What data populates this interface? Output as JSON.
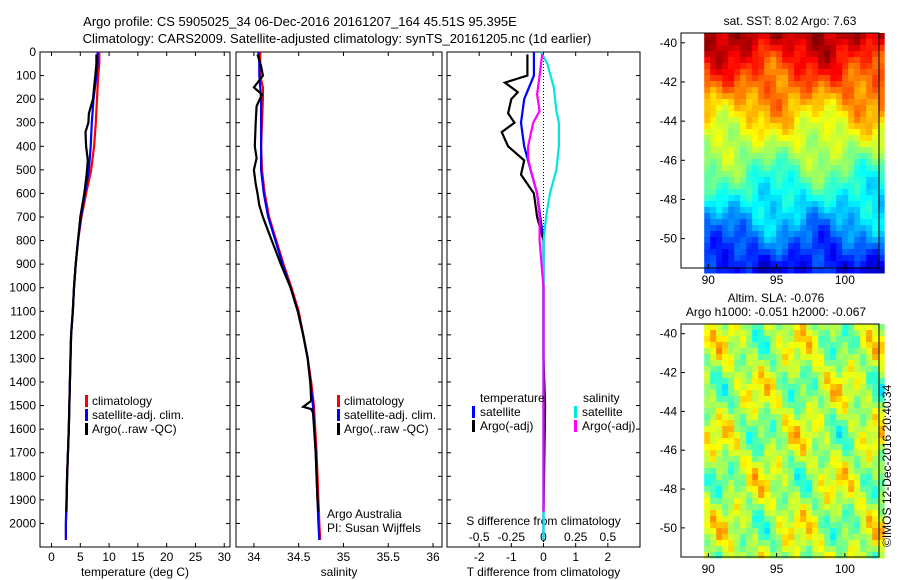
{
  "title_line1": "Argo profile: CS 5905025_34 06-Dec-2016 20161207_164 45.51S 95.395E",
  "title_line2": "Climatology: CARS2009. Satellite-adjusted climatology: synTS_20161205.nc (1d earlier)",
  "colors": {
    "climatology": "#ff0000",
    "satellite": "#0000ff",
    "argo": "#000000",
    "sat_diff_s": "#00e5e5",
    "argo_diff_s": "#ff00ff"
  },
  "chart_data": [
    {
      "type": "line",
      "id": "temperature",
      "xlabel": "temperature (deg C)",
      "ylabel": "",
      "xlim": [
        -2,
        31
      ],
      "ylim": [
        2100,
        0
      ],
      "xticks": [
        0,
        5,
        10,
        15,
        20,
        25,
        30
      ],
      "yticks": [
        0,
        100,
        200,
        300,
        400,
        500,
        600,
        700,
        800,
        900,
        1000,
        1100,
        1200,
        1300,
        1400,
        1500,
        1600,
        1700,
        1800,
        1900,
        2000
      ],
      "legend": [
        "climatology",
        "satellite-adj. clim.",
        "Argo(..raw -QC)"
      ],
      "series": [
        {
          "name": "climatology",
          "color": "#ff0000",
          "points": [
            [
              8.3,
              0
            ],
            [
              8.3,
              50
            ],
            [
              8.1,
              100
            ],
            [
              7.9,
              200
            ],
            [
              7.7,
              300
            ],
            [
              7.4,
              400
            ],
            [
              6.9,
              500
            ],
            [
              6.0,
              600
            ],
            [
              5.2,
              700
            ],
            [
              4.6,
              800
            ],
            [
              4.2,
              900
            ],
            [
              3.9,
              1000
            ],
            [
              3.7,
              1100
            ],
            [
              3.4,
              1200
            ],
            [
              3.2,
              1400
            ],
            [
              3.0,
              1600
            ],
            [
              2.7,
              1800
            ],
            [
              2.5,
              2000
            ],
            [
              2.5,
              2070
            ]
          ]
        },
        {
          "name": "satellite-adj. clim.",
          "color": "#0000ff",
          "points": [
            [
              8.0,
              0
            ],
            [
              8.0,
              50
            ],
            [
              7.8,
              100
            ],
            [
              7.3,
              200
            ],
            [
              7.0,
              300
            ],
            [
              6.8,
              400
            ],
            [
              6.5,
              500
            ],
            [
              5.8,
              600
            ],
            [
              5.1,
              700
            ],
            [
              4.6,
              800
            ],
            [
              4.2,
              900
            ],
            [
              3.9,
              1000
            ],
            [
              3.7,
              1100
            ],
            [
              3.4,
              1200
            ],
            [
              3.2,
              1400
            ],
            [
              3.0,
              1600
            ],
            [
              2.7,
              1800
            ],
            [
              2.5,
              2000
            ],
            [
              2.5,
              2070
            ]
          ]
        },
        {
          "name": "Argo(..raw -QC)",
          "color": "#000000",
          "points": [
            [
              7.8,
              10
            ],
            [
              7.8,
              50
            ],
            [
              7.6,
              100
            ],
            [
              7.4,
              150
            ],
            [
              7.2,
              200
            ],
            [
              6.5,
              260
            ],
            [
              6.4,
              300
            ],
            [
              5.9,
              340
            ],
            [
              6.0,
              400
            ],
            [
              6.3,
              460
            ],
            [
              6.1,
              520
            ],
            [
              5.7,
              600
            ],
            [
              5.0,
              700
            ],
            [
              4.6,
              800
            ],
            [
              4.2,
              900
            ],
            [
              3.9,
              1000
            ],
            [
              3.7,
              1100
            ],
            [
              3.4,
              1200
            ],
            [
              3.2,
              1400
            ],
            [
              3.0,
              1600
            ],
            [
              2.7,
              1800
            ],
            [
              2.6,
              1950
            ]
          ]
        }
      ]
    },
    {
      "type": "line",
      "id": "salinity",
      "xlabel": "salinity",
      "ylabel": "",
      "xlim": [
        33.8,
        36.1
      ],
      "ylim": [
        2100,
        0
      ],
      "xticks": [
        34,
        34.5,
        35,
        35.5,
        36
      ],
      "legend": [
        "climatology",
        "satellite-adj. clim.",
        "Argo(..raw -QC)"
      ],
      "annotation": [
        "Argo Australia",
        "PI: Susan Wijffels"
      ],
      "series": [
        {
          "name": "climatology",
          "color": "#ff0000",
          "points": [
            [
              34.07,
              0
            ],
            [
              34.07,
              100
            ],
            [
              34.1,
              150
            ],
            [
              34.1,
              200
            ],
            [
              34.09,
              300
            ],
            [
              34.08,
              400
            ],
            [
              34.09,
              500
            ],
            [
              34.12,
              600
            ],
            [
              34.17,
              700
            ],
            [
              34.25,
              800
            ],
            [
              34.33,
              900
            ],
            [
              34.42,
              1000
            ],
            [
              34.5,
              1100
            ],
            [
              34.55,
              1200
            ],
            [
              34.6,
              1300
            ],
            [
              34.64,
              1400
            ],
            [
              34.67,
              1500
            ],
            [
              34.7,
              1700
            ],
            [
              34.72,
              1900
            ],
            [
              34.73,
              2000
            ],
            [
              34.74,
              2070
            ]
          ]
        },
        {
          "name": "satellite-adj. clim.",
          "color": "#0000ff",
          "points": [
            [
              34.05,
              0
            ],
            [
              34.06,
              50
            ],
            [
              34.06,
              100
            ],
            [
              34.08,
              200
            ],
            [
              34.08,
              300
            ],
            [
              34.08,
              400
            ],
            [
              34.08,
              500
            ],
            [
              34.11,
              600
            ],
            [
              34.16,
              700
            ],
            [
              34.24,
              800
            ],
            [
              34.32,
              900
            ],
            [
              34.41,
              1000
            ],
            [
              34.49,
              1100
            ],
            [
              34.55,
              1200
            ],
            [
              34.6,
              1300
            ],
            [
              34.63,
              1400
            ],
            [
              34.66,
              1500
            ],
            [
              34.69,
              1700
            ],
            [
              34.71,
              1900
            ],
            [
              34.72,
              2000
            ],
            [
              34.73,
              2070
            ]
          ]
        },
        {
          "name": "Argo(..raw -QC)",
          "color": "#000000",
          "points": [
            [
              34.04,
              10
            ],
            [
              34.08,
              60
            ],
            [
              34.1,
              100
            ],
            [
              34.0,
              150
            ],
            [
              34.09,
              180
            ],
            [
              34.03,
              230
            ],
            [
              34.02,
              300
            ],
            [
              34.01,
              400
            ],
            [
              34.03,
              450
            ],
            [
              34.0,
              500
            ],
            [
              34.02,
              560
            ],
            [
              34.04,
              600
            ],
            [
              34.06,
              650
            ],
            [
              34.1,
              700
            ],
            [
              34.2,
              800
            ],
            [
              34.3,
              900
            ],
            [
              34.41,
              1000
            ],
            [
              34.49,
              1100
            ],
            [
              34.55,
              1200
            ],
            [
              34.6,
              1300
            ],
            [
              34.63,
              1400
            ],
            [
              34.64,
              1480
            ],
            [
              34.55,
              1505
            ],
            [
              34.64,
              1515
            ],
            [
              34.66,
              1530
            ],
            [
              34.69,
              1700
            ],
            [
              34.71,
              1900
            ],
            [
              34.72,
              1950
            ]
          ]
        }
      ]
    },
    {
      "type": "line",
      "id": "difference",
      "xlabel": "T difference from climatology",
      "xlabel_top": "S difference from climatology",
      "ylabel": "",
      "xlim": [
        -3,
        3
      ],
      "ylim": [
        2100,
        0
      ],
      "xticks": [
        -2,
        -1,
        0,
        1,
        2
      ],
      "xticks_top": [
        -0.5,
        -0.25,
        0,
        0.25,
        0.5
      ],
      "legend_temperature_title": "temperature",
      "legend_salinity_title": "salinity",
      "legend_temperature": [
        "satellite",
        "Argo(-adj)"
      ],
      "legend_salinity": [
        "satellite",
        "Argo(-adj)"
      ],
      "series": [
        {
          "name": "T satellite",
          "color": "#0000ff",
          "points": [
            [
              -0.3,
              0
            ],
            [
              -0.3,
              50
            ],
            [
              -0.3,
              100
            ],
            [
              -0.6,
              200
            ],
            [
              -0.7,
              300
            ],
            [
              -0.6,
              400
            ],
            [
              -0.4,
              500
            ],
            [
              -0.2,
              600
            ],
            [
              -0.1,
              700
            ],
            [
              0,
              800
            ],
            [
              0,
              1000
            ],
            [
              0,
              1500
            ],
            [
              0,
              2070
            ]
          ]
        },
        {
          "name": "T Argo(-adj)",
          "color": "#000000",
          "points": [
            [
              -0.5,
              10
            ],
            [
              -0.5,
              50
            ],
            [
              -0.5,
              100
            ],
            [
              -1.2,
              130
            ],
            [
              -0.8,
              170
            ],
            [
              -1.0,
              200
            ],
            [
              -1.1,
              260
            ],
            [
              -0.9,
              300
            ],
            [
              -1.3,
              340
            ],
            [
              -1.1,
              400
            ],
            [
              -0.6,
              460
            ],
            [
              -0.7,
              520
            ],
            [
              -0.3,
              600
            ],
            [
              -0.2,
              700
            ],
            [
              0,
              800
            ],
            [
              0,
              1000
            ],
            [
              0,
              1300
            ],
            [
              0.05,
              1500
            ],
            [
              0,
              1950
            ]
          ]
        },
        {
          "name": "S satellite",
          "color": "#00e5e5",
          "points": [
            [
              -0.02,
              0
            ],
            [
              0.03,
              50
            ],
            [
              0.08,
              150
            ],
            [
              0.1,
              250
            ],
            [
              0.12,
              300
            ],
            [
              0.12,
              400
            ],
            [
              0.1,
              500
            ],
            [
              0.05,
              600
            ],
            [
              0.02,
              700
            ],
            [
              0,
              800
            ],
            [
              0,
              1000
            ],
            [
              0,
              1500
            ],
            [
              0,
              2070
            ]
          ]
        },
        {
          "name": "S Argo(-adj)",
          "color": "#ff00ff",
          "points": [
            [
              -0.01,
              10
            ],
            [
              -0.03,
              100
            ],
            [
              -0.05,
              180
            ],
            [
              -0.03,
              250
            ],
            [
              -0.08,
              300
            ],
            [
              -0.12,
              400
            ],
            [
              -0.12,
              450
            ],
            [
              -0.1,
              500
            ],
            [
              -0.05,
              600
            ],
            [
              -0.03,
              700
            ],
            [
              -0.03,
              800
            ],
            [
              0,
              1000
            ],
            [
              0,
              1500
            ],
            [
              0,
              1950
            ]
          ]
        }
      ]
    },
    {
      "type": "heatmap",
      "id": "sst_map",
      "title": "sat. SST: 8.02 Argo: 7.63",
      "xlim": [
        88,
        102.5
      ],
      "ylim": [
        -51.5,
        -39.5
      ],
      "xticks": [
        90,
        95,
        100
      ],
      "yticks": [
        -40,
        -42,
        -44,
        -46,
        -48,
        -50
      ]
    },
    {
      "type": "heatmap",
      "id": "sla_map",
      "title_line1": "Altim. SLA: -0.076",
      "title_line2": "Argo h1000: -0.051 h2000: -0.067",
      "xlim": [
        88,
        102.5
      ],
      "ylim": [
        -51.5,
        -39.5
      ],
      "xticks": [
        90,
        95,
        100
      ],
      "yticks": [
        -40,
        -42,
        -44,
        -46,
        -48,
        -50
      ]
    }
  ],
  "legend_labels": {
    "climatology": "climatology",
    "satellite_adj": "satellite-adj. clim.",
    "argo_raw": "Argo(..raw -QC)",
    "temperature": "temperature",
    "salinity": "salinity",
    "satellite": "satellite",
    "argo_adj": "Argo(-adj)"
  },
  "credit_line1": "Argo Australia",
  "credit_line2": "PI: Susan Wijffels",
  "watermark": "©IMOS 12-Dec-2016 20:40:34"
}
